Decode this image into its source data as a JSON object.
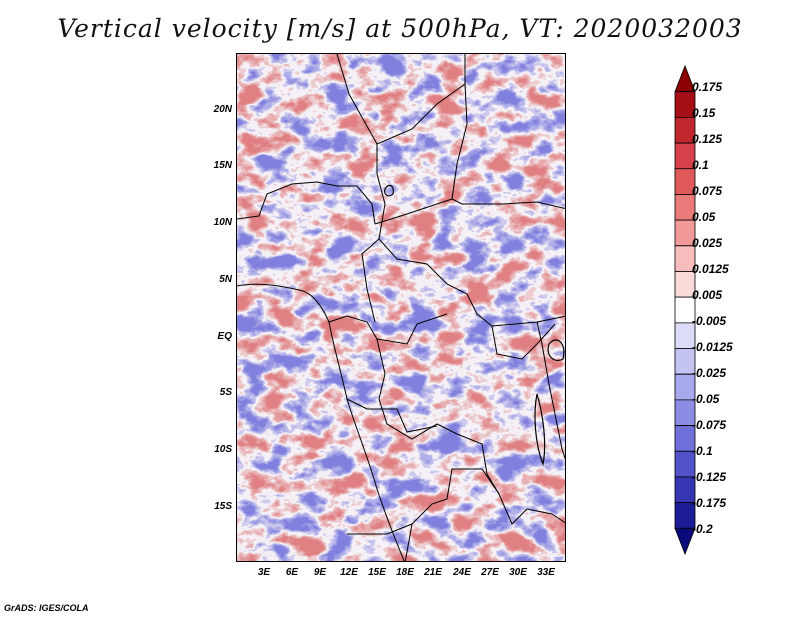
{
  "title": "Vertical velocity [m/s] at 500hPa, VT: 2020032003",
  "footer": "GrADS: IGES/COLA",
  "map": {
    "lat_labels": [
      "20N",
      "15N",
      "10N",
      "5N",
      "EQ",
      "5S",
      "10S",
      "15S"
    ],
    "lon_labels": [
      "3E",
      "6E",
      "9E",
      "12E",
      "15E",
      "18E",
      "21E",
      "24E",
      "27E",
      "30E",
      "33E"
    ]
  },
  "colorbar": {
    "labels": [
      "0.175",
      "0.15",
      "0.125",
      "0.1",
      "0.075",
      "0.05",
      "0.025",
      "0.0125",
      "0.005",
      "-0.005",
      "-0.0125",
      "-0.025",
      "-0.05",
      "-0.075",
      "-0.1",
      "-0.125",
      "-0.175",
      "-0.2"
    ],
    "colors": [
      "#8b0000",
      "#a50f15",
      "#c0272d",
      "#d6404a",
      "#e05a5a",
      "#ea7a7a",
      "#f29a9a",
      "#f7bcbc",
      "#fbdada",
      "#ffffff",
      "#dcdcf8",
      "#c4c4f2",
      "#a8a8ec",
      "#8c8ce4",
      "#6f6fd9",
      "#5252c9",
      "#3636b3",
      "#1c1c96",
      "#09097a"
    ]
  }
}
